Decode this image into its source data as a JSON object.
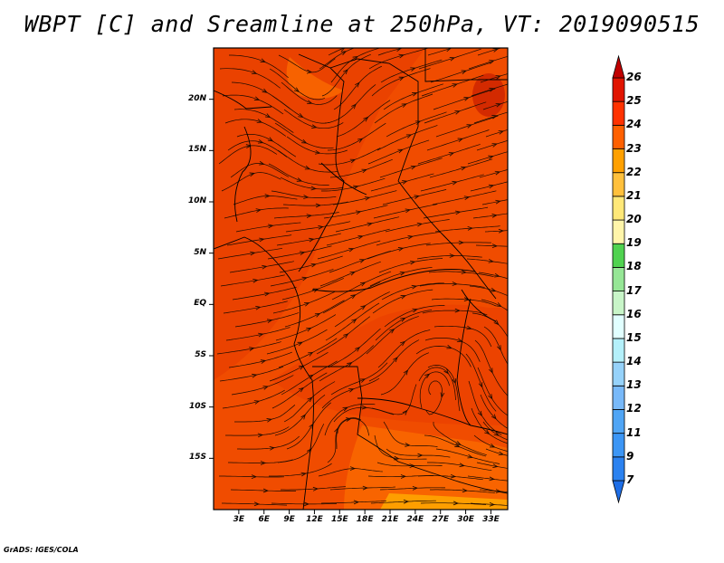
{
  "title": "WBPT [C] and Sreamline at 250hPa, VT: 2019090515",
  "footer": "GrADS: IGES/COLA",
  "map": {
    "lon_range": [
      0,
      35
    ],
    "lat_range": [
      -20,
      25
    ],
    "lat_ticks": [
      {
        "value": 20,
        "label": "20N"
      },
      {
        "value": 15,
        "label": "15N"
      },
      {
        "value": 10,
        "label": "10N"
      },
      {
        "value": 5,
        "label": "5N"
      },
      {
        "value": 0,
        "label": "EQ"
      },
      {
        "value": -5,
        "label": "5S"
      },
      {
        "value": -10,
        "label": "10S"
      },
      {
        "value": -15,
        "label": "15S"
      }
    ],
    "lon_ticks": [
      {
        "value": 3,
        "label": "3E"
      },
      {
        "value": 6,
        "label": "6E"
      },
      {
        "value": 9,
        "label": "9E"
      },
      {
        "value": 12,
        "label": "12E"
      },
      {
        "value": 15,
        "label": "15E"
      },
      {
        "value": 18,
        "label": "18E"
      },
      {
        "value": 21,
        "label": "21E"
      },
      {
        "value": 24,
        "label": "24E"
      },
      {
        "value": 27,
        "label": "27E"
      },
      {
        "value": 30,
        "label": "30E"
      },
      {
        "value": 33,
        "label": "33E"
      }
    ]
  },
  "colorbar": {
    "levels": [
      "7",
      "9",
      "11",
      "12",
      "13",
      "14",
      "15",
      "16",
      "17",
      "18",
      "19",
      "20",
      "21",
      "22",
      "23",
      "24",
      "25",
      "26"
    ],
    "colors": [
      "#1e6ee6",
      "#2b82f0",
      "#3c96f5",
      "#50a5f5",
      "#78b9f9",
      "#96d2fa",
      "#b4f0fa",
      "#e1ffff",
      "#c8f5c8",
      "#96e696",
      "#50d250",
      "#fff5aa",
      "#ffe878",
      "#ffc03c",
      "#ffa000",
      "#ff6000",
      "#ff3200",
      "#e11400",
      "#c00000"
    ],
    "unit": "C"
  },
  "field": {
    "base_color": "#f04c00",
    "warm_patches": [
      {
        "label": "24-25",
        "color": "#e63a00"
      },
      {
        "label": "25-26",
        "color": "#cc2200"
      }
    ],
    "cool_patches": [
      {
        "label": "22-23",
        "color": "#ff7800"
      },
      {
        "label": "21-22",
        "color": "#ffa800"
      }
    ]
  }
}
